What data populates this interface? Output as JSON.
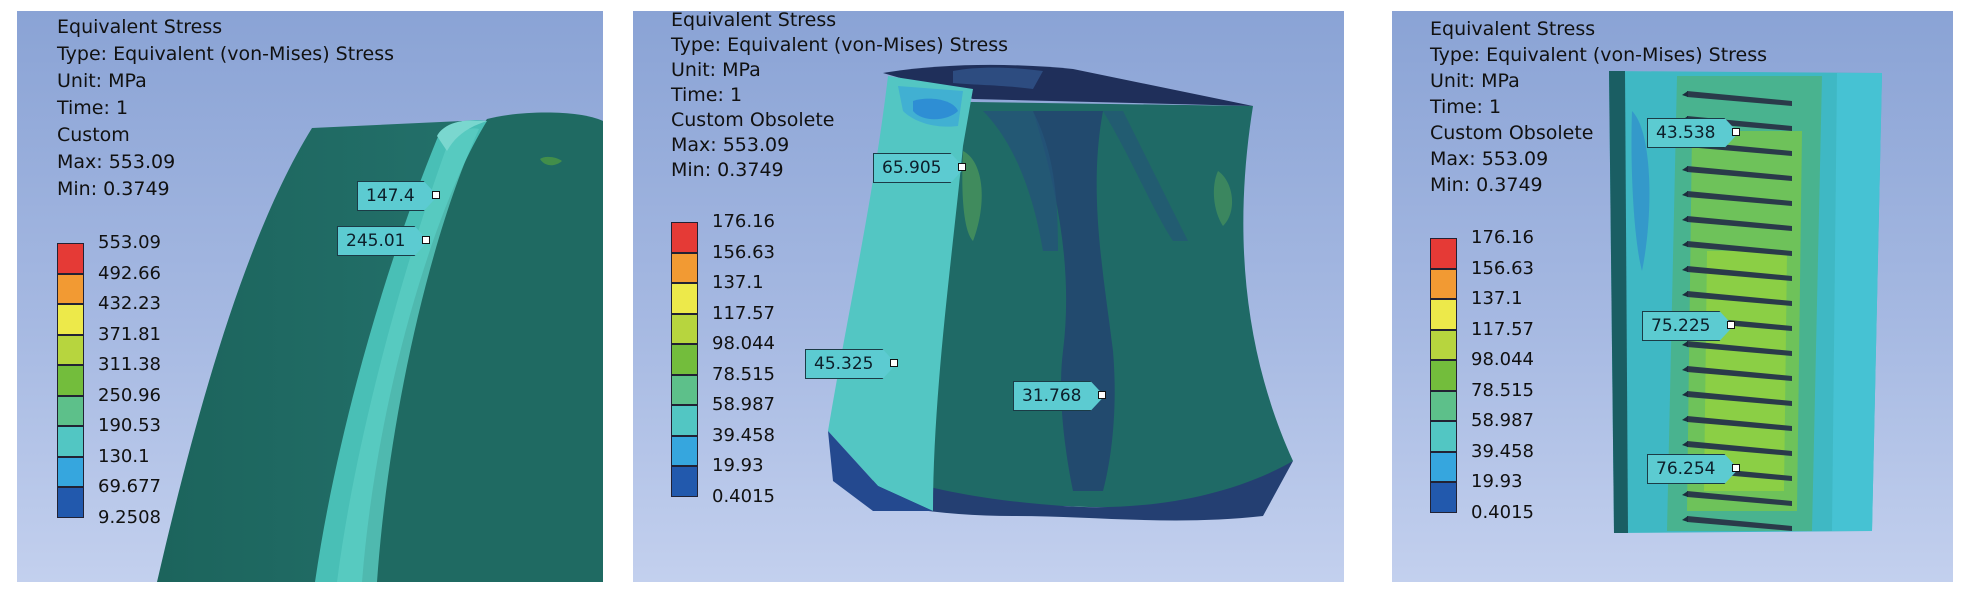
{
  "colors": {
    "legend": [
      "#e53a36",
      "#f29a33",
      "#ede94a",
      "#b7d53e",
      "#73bd3c",
      "#5dc08a",
      "#52c6c3",
      "#36a6de",
      "#2259ad"
    ],
    "background_top": "#8aa3d5",
    "background_bottom": "#c3d0ee"
  },
  "panels": [
    {
      "header": [
        "Equivalent Stress",
        "Type: Equivalent (von-Mises) Stress",
        "Unit: MPa",
        "Time: 1",
        "Custom",
        "Max: 553.09",
        "Min: 0.3749"
      ],
      "legend": [
        "553.09",
        "492.66",
        "432.23",
        "371.81",
        "311.38",
        "250.96",
        "190.53",
        "130.1",
        "69.677",
        "9.2508"
      ],
      "probes": [
        {
          "value": "147.4"
        },
        {
          "value": "245.01"
        }
      ]
    },
    {
      "header": [
        "Equivalent Stress",
        "Type: Equivalent (von-Mises) Stress",
        "Unit: MPa",
        "Time: 1",
        "Custom Obsolete",
        "Max: 553.09",
        "Min: 0.3749"
      ],
      "legend": [
        "176.16",
        "156.63",
        "137.1",
        "117.57",
        "98.044",
        "78.515",
        "58.987",
        "39.458",
        "19.93",
        "0.4015"
      ],
      "probes": [
        {
          "value": "65.905"
        },
        {
          "value": "45.325"
        },
        {
          "value": "31.768"
        }
      ]
    },
    {
      "header": [
        "Equivalent Stress",
        "Type: Equivalent (von-Mises) Stress",
        "Unit: MPa",
        "Time: 1",
        "Custom Obsolete",
        "Max: 553.09",
        "Min: 0.3749"
      ],
      "legend": [
        "176.16",
        "156.63",
        "137.1",
        "117.57",
        "98.044",
        "78.515",
        "58.987",
        "39.458",
        "19.93",
        "0.4015"
      ],
      "probes": [
        {
          "value": "43.538"
        },
        {
          "value": "75.225"
        },
        {
          "value": "76.254"
        }
      ]
    }
  ]
}
